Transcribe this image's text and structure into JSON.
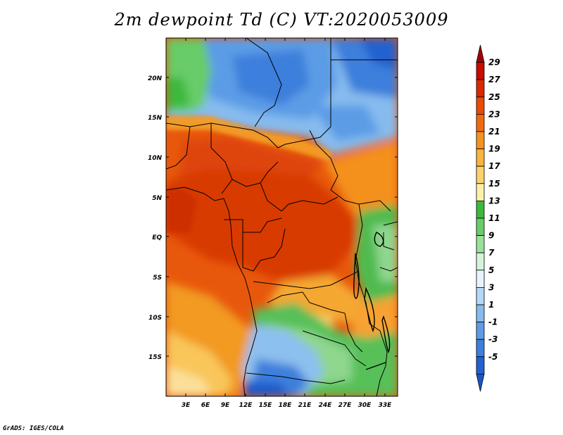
{
  "title": "2m dewpoint Td (C) VT:2020053009",
  "credit": "GrADS: IGES/COLA",
  "map": {
    "lat_ticks": [
      "20N",
      "15N",
      "10N",
      "5N",
      "EQ",
      "5S",
      "10S",
      "15S"
    ],
    "lat_values": [
      20,
      15,
      10,
      5,
      0,
      -5,
      -10,
      -15
    ],
    "lon_ticks": [
      "3E",
      "6E",
      "9E",
      "12E",
      "15E",
      "18E",
      "21E",
      "24E",
      "27E",
      "30E",
      "33E"
    ],
    "lon_values": [
      3,
      6,
      9,
      12,
      15,
      18,
      21,
      24,
      27,
      30,
      33
    ],
    "lat_range": [
      -20,
      25
    ],
    "lon_range": [
      0,
      35
    ]
  },
  "colorbar": {
    "labels": [
      "29",
      "27",
      "25",
      "23",
      "21",
      "19",
      "17",
      "15",
      "13",
      "11",
      "9",
      "7",
      "5",
      "3",
      "1",
      "-1",
      "-3",
      "-5"
    ],
    "colors": [
      "#a50000",
      "#c80a00",
      "#dc2800",
      "#ea4a05",
      "#f26a0f",
      "#f7921e",
      "#f9b43c",
      "#fbd36b",
      "#fdf0a8",
      "#3cb83c",
      "#68cc68",
      "#9ae09a",
      "#d4f4d8",
      "#e8f4fd",
      "#b4d8f5",
      "#86bbee",
      "#5c9ce6",
      "#3d7fdc",
      "#2262d0",
      "#1a56c8"
    ]
  }
}
